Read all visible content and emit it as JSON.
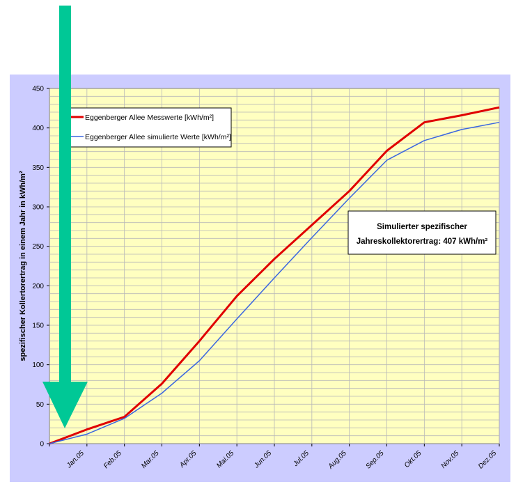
{
  "chart_data": {
    "type": "line",
    "title": "",
    "xlabel": "",
    "ylabel": "spezifischer Kollertorertrag in einem Jahr in kWh/m²",
    "categories": [
      "",
      "Jan.05",
      "Feb.05",
      "Mar.05",
      "Apr.05",
      "Mai.05",
      "Jun.05",
      "Jul.05",
      "Aug.05",
      "Sep.05",
      "Okt.05",
      "Nov.05",
      "Dez.05"
    ],
    "yticks": [
      0,
      50,
      100,
      150,
      200,
      250,
      300,
      350,
      400,
      450
    ],
    "ylim": [
      0,
      450
    ],
    "grid": true,
    "legend_position": "top-left",
    "series": [
      {
        "name": "Eggenberger Allee Messwerte [kWh/m²]",
        "color": "#e00000",
        "values": [
          0,
          18,
          34,
          76,
          130,
          187,
          234,
          277,
          320,
          371,
          407,
          416,
          426
        ]
      },
      {
        "name": "Eggenberger Allee simulierte Werte [kWh/m²]",
        "color": "#3a66e0",
        "values": [
          0,
          12,
          32,
          64,
          105,
          158,
          210,
          261,
          311,
          359,
          384,
          398,
          407
        ]
      }
    ],
    "annotation": {
      "line1": "Simulierter spezifischer",
      "line2": "Jahreskollektorertrag: 407 kWh/m²"
    },
    "arrow_color": "#00c896",
    "background_color": "#ccccff",
    "plot_color": "#ffffc0"
  }
}
